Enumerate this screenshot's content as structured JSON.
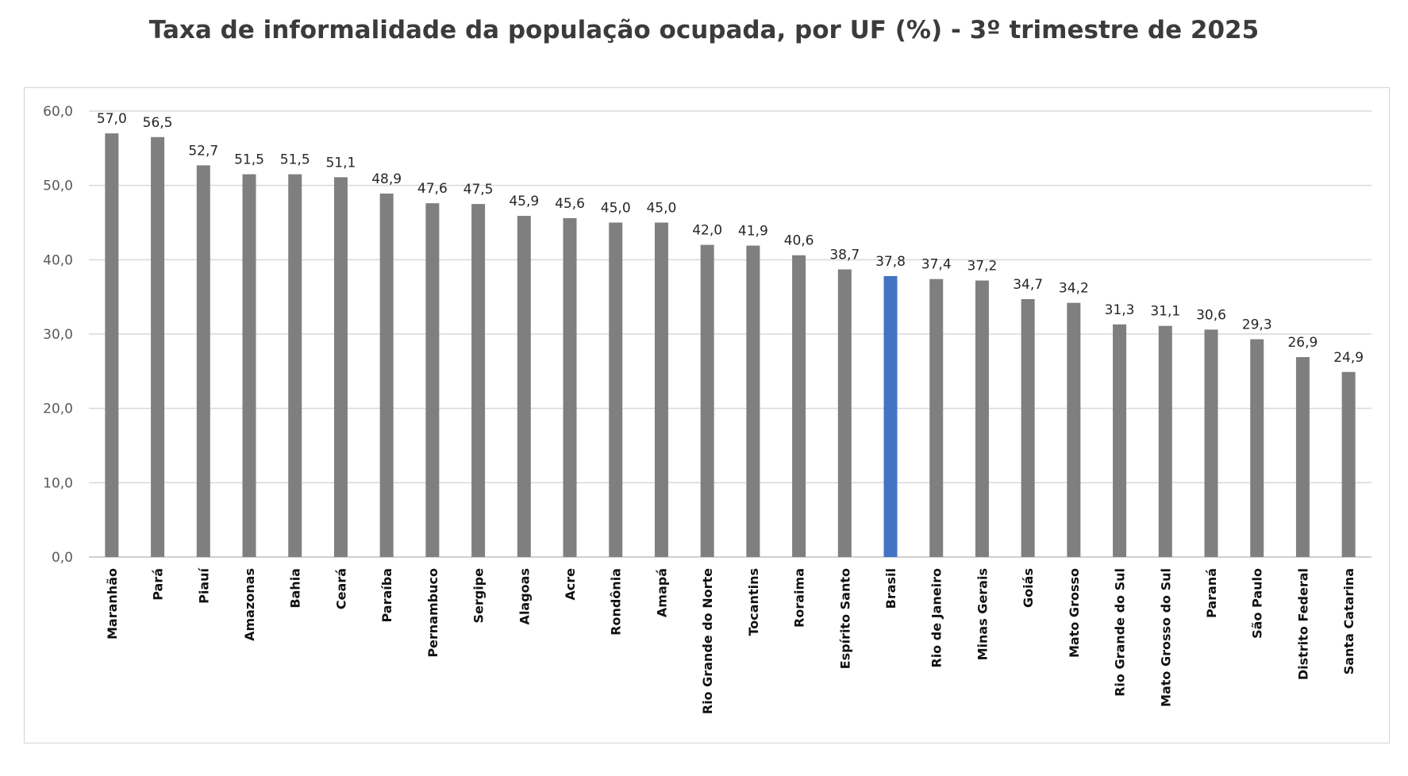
{
  "chart_data": {
    "type": "bar",
    "title": "Taxa de informalidade da população ocupada, por UF (%) - 3º trimestre de 2025",
    "xlabel": "",
    "ylabel": "",
    "ylim": [
      0,
      60
    ],
    "yticks": [
      "0,0",
      "10,0",
      "20,0",
      "30,0",
      "40,0",
      "50,0",
      "60,0"
    ],
    "grid": true,
    "categories": [
      "Maranhão",
      "Pará",
      "Piauí",
      "Amazonas",
      "Bahia",
      "Ceará",
      "Paraíba",
      "Pernambuco",
      "Sergipe",
      "Alagoas",
      "Acre",
      "Rondônia",
      "Amapá",
      "Rio Grande do Norte",
      "Tocantins",
      "Roraima",
      "Espírito Santo",
      "Brasil",
      "Rio de Janeiro",
      "Minas Gerais",
      "Goiás",
      "Mato Grosso",
      "Rio Grande do Sul",
      "Mato Grosso do Sul",
      "Paraná",
      "São Paulo",
      "Distrito Federal",
      "Santa Catarina"
    ],
    "values": [
      57.0,
      56.5,
      52.7,
      51.5,
      51.5,
      51.1,
      48.9,
      47.6,
      47.5,
      45.9,
      45.6,
      45.0,
      45.0,
      42.0,
      41.9,
      40.6,
      38.7,
      37.8,
      37.4,
      37.2,
      34.7,
      34.2,
      31.3,
      31.1,
      30.6,
      29.3,
      26.9,
      24.9
    ],
    "value_labels": [
      "57,0",
      "56,5",
      "52,7",
      "51,5",
      "51,5",
      "51,1",
      "48,9",
      "47,6",
      "47,5",
      "45,9",
      "45,6",
      "45,0",
      "45,0",
      "42,0",
      "41,9",
      "40,6",
      "38,7",
      "37,8",
      "37,4",
      "37,2",
      "34,7",
      "34,2",
      "31,3",
      "31,1",
      "30,6",
      "29,3",
      "26,9",
      "24,9"
    ],
    "highlight_category": "Brasil",
    "colors": {
      "bar": "#7f7f7f",
      "highlight": "#4472c4",
      "grid": "#d9d9d9",
      "axis": "#bfbfbf"
    }
  }
}
